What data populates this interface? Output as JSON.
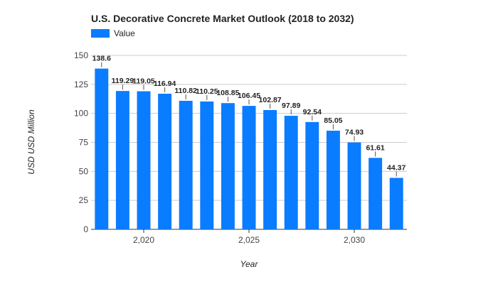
{
  "chart_data": {
    "type": "bar",
    "title": "U.S. Decorative Concrete Market Outlook (2018 to 2032)",
    "xlabel": "Year",
    "ylabel": "USD USD Million",
    "legend_position": "top-left",
    "grid": true,
    "ylim": [
      0,
      150
    ],
    "yticks": [
      0,
      25,
      50,
      75,
      100,
      125,
      150
    ],
    "xticks": [
      2020,
      2025,
      2030
    ],
    "xtick_labels": [
      "2,020",
      "2,025",
      "2,030"
    ],
    "x": [
      2018,
      2019,
      2020,
      2021,
      2022,
      2023,
      2024,
      2025,
      2026,
      2027,
      2028,
      2029,
      2030,
      2031,
      2032
    ],
    "series": [
      {
        "name": "Value",
        "color": "#0a7cff",
        "values": [
          138.6,
          119.29,
          119.05,
          116.94,
          110.82,
          110.25,
          108.85,
          106.45,
          102.87,
          97.89,
          92.54,
          85.05,
          74.93,
          61.61,
          44.37
        ],
        "labels": [
          "138.6",
          "119.29",
          "119.05",
          "116.94",
          "110.82",
          "110.25",
          "108.85",
          "106.45",
          "102.87",
          "97.89",
          "92.54",
          "85.05",
          "74.93",
          "61.61",
          "44.37"
        ]
      }
    ]
  }
}
